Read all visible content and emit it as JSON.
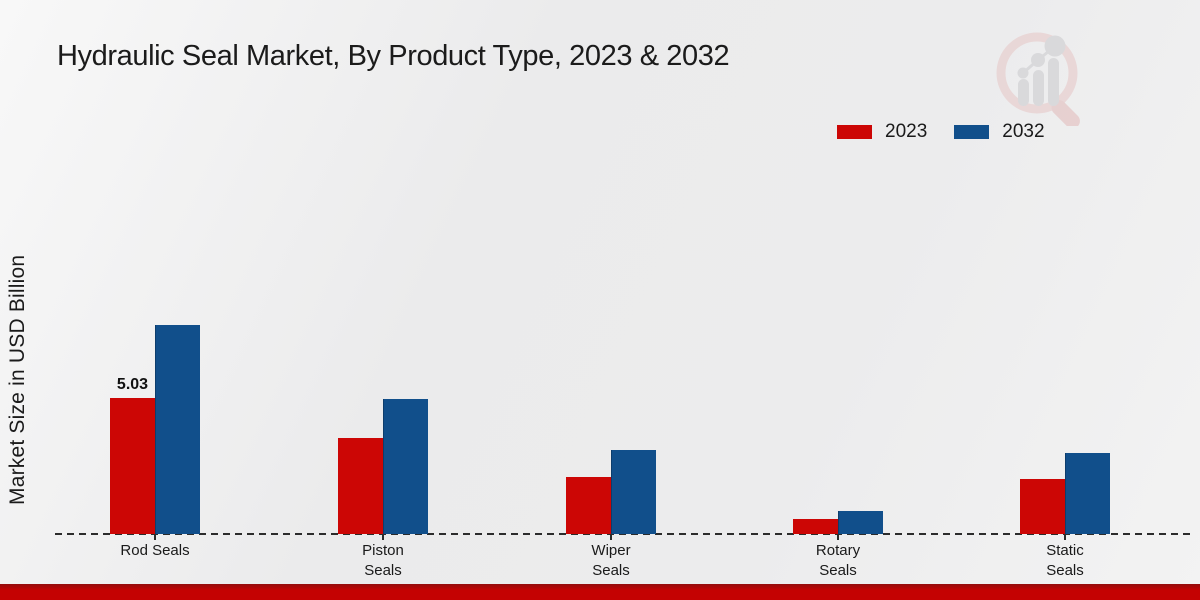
{
  "title": "Hydraulic Seal Market, By Product Type, 2023 & 2032",
  "y_axis_label": "Market Size in USD Billion",
  "legend": {
    "items": [
      {
        "label": "2023",
        "color": "#cc0605"
      },
      {
        "label": "2032",
        "color": "#114f8b"
      }
    ],
    "position": "top-right"
  },
  "logo": {
    "name": "market-research-future-watermark"
  },
  "colors": {
    "series_2023": "#cc0605",
    "series_2032": "#114f8b",
    "bottom_strip": "#c40202",
    "axis_line": "#2c2c2c",
    "background": "#ededee"
  },
  "chart_data": {
    "type": "bar",
    "title": "Hydraulic Seal Market, By Product Type, 2023 & 2032",
    "xlabel": "",
    "ylabel": "Market Size in USD Billion",
    "unit": "USD Billion",
    "categories": [
      "Rod Seals",
      "Piston Seals",
      "Wiper Seals",
      "Rotary Seals",
      "Static Seals"
    ],
    "category_label_lines": [
      [
        "Rod Seals"
      ],
      [
        "Piston",
        "Seals"
      ],
      [
        "Wiper",
        "Seals"
      ],
      [
        "Rotary",
        "Seals"
      ],
      [
        "Static",
        "Seals"
      ]
    ],
    "series": [
      {
        "name": "2023",
        "color": "#cc0605",
        "values": [
          5.03,
          3.55,
          2.11,
          0.55,
          2.03
        ],
        "bar_labels": [
          "5.03",
          "",
          "",
          "",
          ""
        ]
      },
      {
        "name": "2032",
        "color": "#114f8b",
        "values": [
          7.73,
          5.0,
          3.11,
          0.85,
          3.0
        ],
        "bar_labels": [
          "",
          "",
          "",
          "",
          ""
        ]
      }
    ],
    "annotations": [
      {
        "text": "5.03",
        "category": "Rod Seals",
        "series": "2023"
      }
    ],
    "ylim": [
      0,
      8.5
    ],
    "grid": false,
    "y_axis_ticks_visible": false,
    "legend_position": "top-right"
  }
}
